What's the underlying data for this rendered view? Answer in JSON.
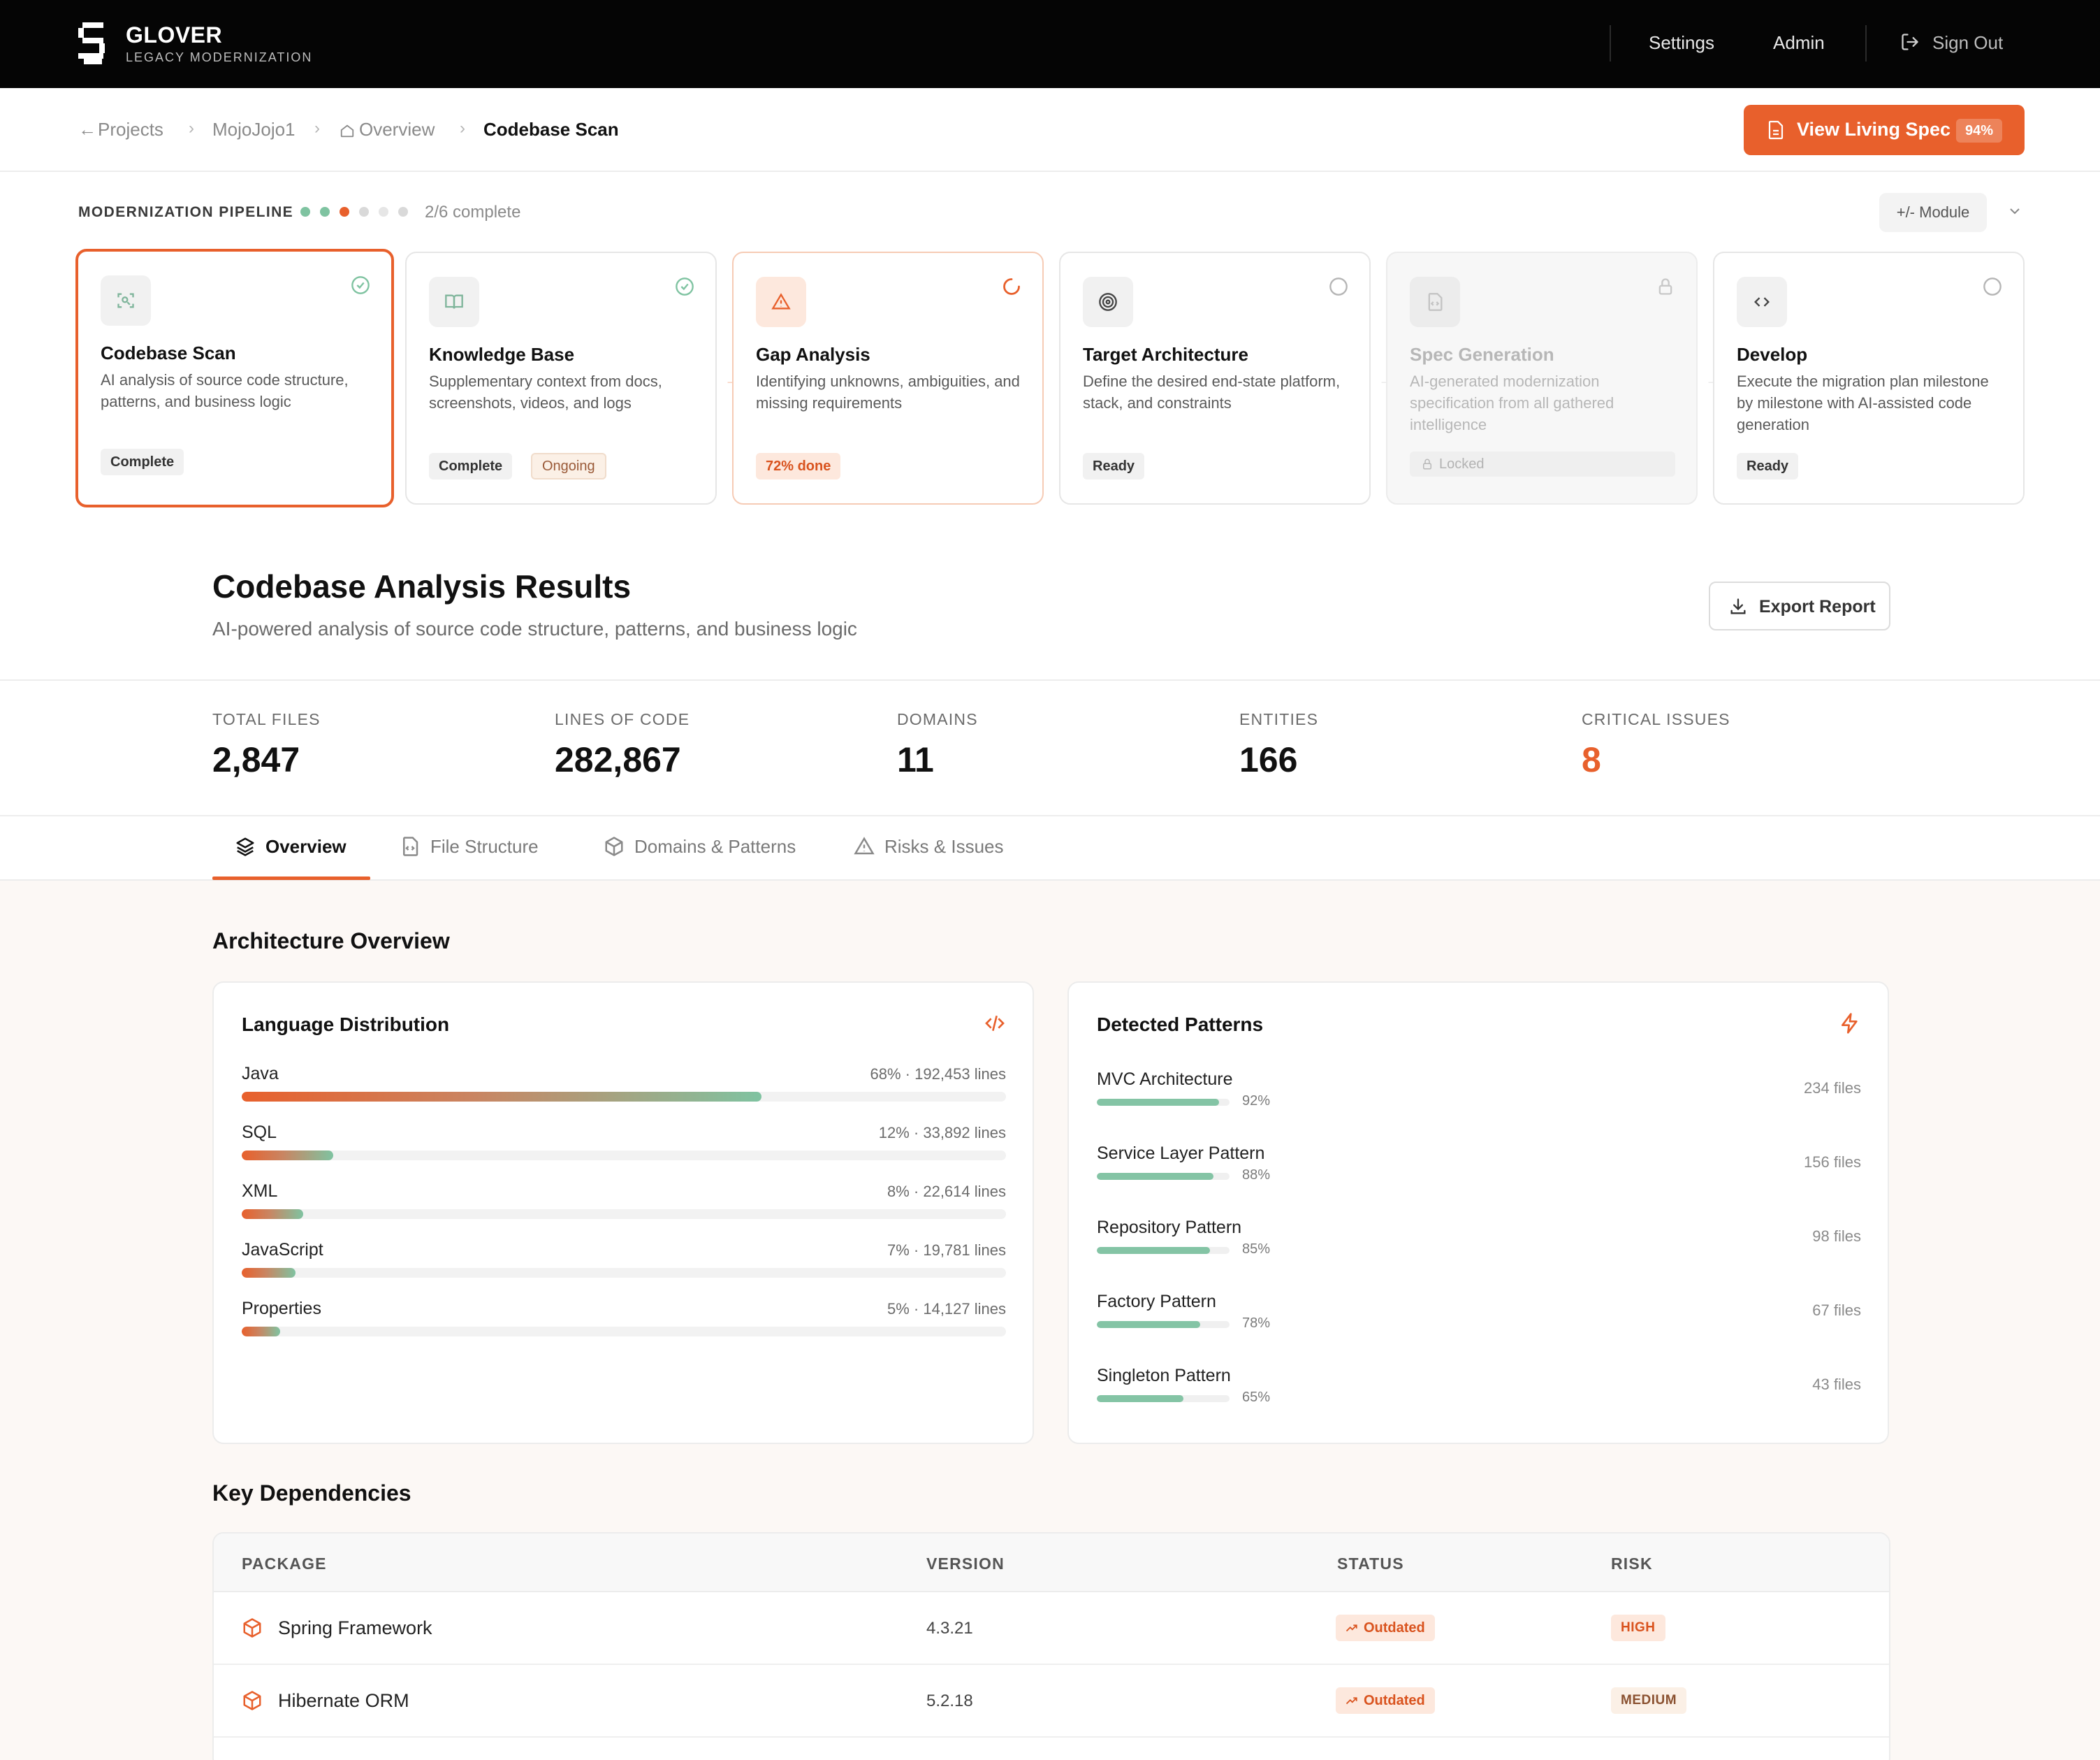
{
  "brand": {
    "name": "GLOVER",
    "subtitle": "LEGACY MODERNIZATION"
  },
  "nav": {
    "settings": "Settings",
    "admin": "Admin",
    "sign_out": "Sign Out"
  },
  "breadcrumb": {
    "projects": "Projects",
    "project": "MojoJojo1",
    "overview": "Overview",
    "current": "Codebase Scan"
  },
  "living_spec": {
    "label": "View Living Spec",
    "percent": "94%"
  },
  "pipeline": {
    "label": "MODERNIZATION PIPELINE",
    "progress": "2/6 complete",
    "module_button": "+/- Module",
    "dot_colors": [
      "#7fc3a1",
      "#7fc3a1",
      "#e8602c",
      "#d9d9d9",
      "#e6e6e6",
      "#d9d9d9"
    ],
    "stages": [
      {
        "title": "Codebase Scan",
        "desc": "AI analysis of source code structure, patterns, and business logic",
        "badges": [
          "Complete"
        ],
        "icon": "scan-icon",
        "status_icon": "check-circle-icon"
      },
      {
        "title": "Knowledge Base",
        "desc": "Supplementary context from docs, screenshots, videos, and logs",
        "badges": [
          "Complete",
          "Ongoing"
        ],
        "icon": "book-icon",
        "status_icon": "check-circle-icon"
      },
      {
        "title": "Gap Analysis",
        "desc": "Identifying unknowns, ambiguities, and missing requirements",
        "badges": [
          "72% done"
        ],
        "icon": "warning-icon",
        "status_icon": "spinner-icon"
      },
      {
        "title": "Target Architecture",
        "desc": "Define the desired end-state platform, stack, and constraints",
        "badges": [
          "Ready"
        ],
        "icon": "target-icon",
        "status_icon": "empty-circle-icon"
      },
      {
        "title": "Spec Generation",
        "desc": "AI-generated modernization specification from all gathered intelligence",
        "badges": [
          "Locked"
        ],
        "icon": "file-code-icon",
        "status_icon": "lock-icon"
      },
      {
        "title": "Develop",
        "desc": "Execute the migration plan milestone by milestone with AI-assisted code generation",
        "badges": [
          "Ready"
        ],
        "icon": "code-icon",
        "status_icon": "empty-circle-icon"
      }
    ]
  },
  "results": {
    "title": "Codebase Analysis Results",
    "subtitle": "AI-powered analysis of source code structure, patterns, and business logic",
    "export_label": "Export Report"
  },
  "stats": [
    {
      "label": "TOTAL FILES",
      "value": "2,847"
    },
    {
      "label": "LINES OF CODE",
      "value": "282,867"
    },
    {
      "label": "DOMAINS",
      "value": "11"
    },
    {
      "label": "ENTITIES",
      "value": "166"
    },
    {
      "label": "CRITICAL ISSUES",
      "value": "8"
    }
  ],
  "tabs": [
    {
      "label": "Overview",
      "icon": "layers-icon",
      "active": true
    },
    {
      "label": "File Structure",
      "icon": "file-code-icon",
      "active": false
    },
    {
      "label": "Domains & Patterns",
      "icon": "box-icon",
      "active": false
    },
    {
      "label": "Risks & Issues",
      "icon": "warning-icon",
      "active": false
    }
  ],
  "architecture": {
    "title": "Architecture Overview",
    "languages": {
      "title": "Language Distribution",
      "items": [
        {
          "name": "Java",
          "meta": "68% · 192,453 lines",
          "percent": 68
        },
        {
          "name": "SQL",
          "meta": "12% · 33,892 lines",
          "percent": 12
        },
        {
          "name": "XML",
          "meta": "8% · 22,614 lines",
          "percent": 8
        },
        {
          "name": "JavaScript",
          "meta": "7% · 19,781 lines",
          "percent": 7
        },
        {
          "name": "Properties",
          "meta": "5% · 14,127 lines",
          "percent": 5
        }
      ]
    },
    "patterns": {
      "title": "Detected Patterns",
      "items": [
        {
          "name": "MVC Architecture",
          "pct": "92%",
          "value": 92,
          "files": "234 files"
        },
        {
          "name": "Service Layer Pattern",
          "pct": "88%",
          "value": 88,
          "files": "156 files"
        },
        {
          "name": "Repository Pattern",
          "pct": "85%",
          "value": 85,
          "files": "98 files"
        },
        {
          "name": "Factory Pattern",
          "pct": "78%",
          "value": 78,
          "files": "67 files"
        },
        {
          "name": "Singleton Pattern",
          "pct": "65%",
          "value": 65,
          "files": "43 files"
        }
      ]
    }
  },
  "dependencies": {
    "title": "Key Dependencies",
    "columns": [
      "PACKAGE",
      "VERSION",
      "STATUS",
      "RISK"
    ],
    "rows": [
      {
        "package": "Spring Framework",
        "version": "4.3.21",
        "status": "Outdated",
        "risk": "HIGH"
      },
      {
        "package": "Hibernate ORM",
        "version": "5.2.18",
        "status": "Outdated",
        "risk": "MEDIUM"
      }
    ]
  },
  "colors": {
    "accent": "#e8602c",
    "success": "#7fc3a1",
    "topbar": "#050505"
  }
}
